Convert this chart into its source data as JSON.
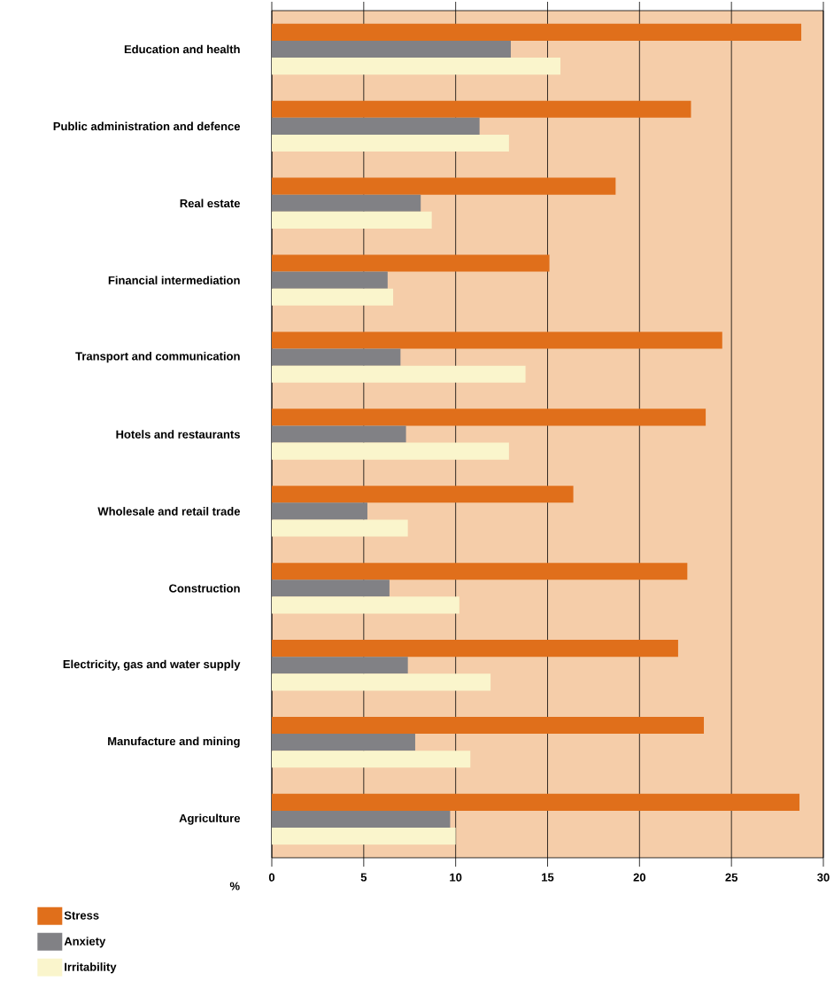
{
  "chart_data": {
    "type": "bar",
    "orientation": "horizontal",
    "xlabel": "%",
    "categories": [
      "Education and health",
      "Public administration and defence",
      "Real estate",
      "Financial intermediation",
      "Transport and communication",
      "Hotels and restaurants",
      "Wholesale and retail trade",
      "Construction",
      "Electricity, gas and water supply",
      "Manufacture and mining",
      "Agriculture"
    ],
    "series": [
      {
        "name": "Stress",
        "color": "#e06f1b",
        "values": [
          28.8,
          22.8,
          18.7,
          15.1,
          24.5,
          23.6,
          16.4,
          22.6,
          22.1,
          23.5,
          28.7
        ]
      },
      {
        "name": "Anxiety",
        "color": "#818185",
        "values": [
          13.0,
          11.3,
          8.1,
          6.3,
          7.0,
          7.3,
          5.2,
          6.4,
          7.4,
          7.8,
          9.7
        ]
      },
      {
        "name": "Irritability",
        "color": "#faf5cc",
        "values": [
          15.7,
          12.9,
          8.7,
          6.6,
          13.8,
          12.9,
          7.4,
          10.2,
          11.9,
          10.8,
          10.0
        ]
      }
    ],
    "xlim": [
      0,
      30
    ],
    "xticks": [
      0,
      5,
      10,
      15,
      20,
      25,
      30
    ],
    "grid": "x",
    "legend": "bottom left"
  }
}
